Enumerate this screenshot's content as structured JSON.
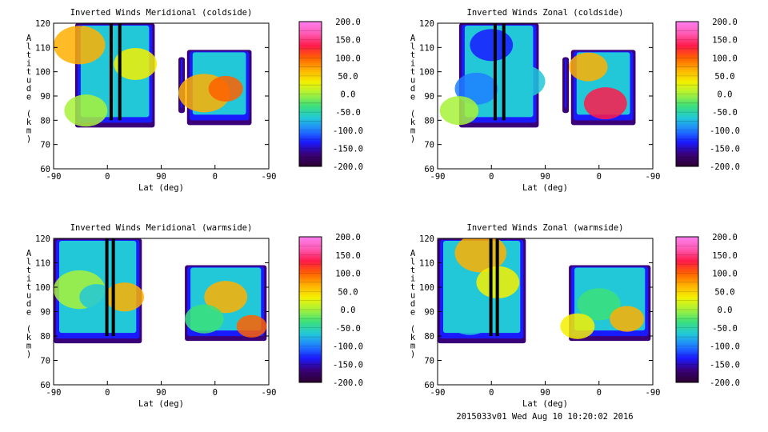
{
  "figure": {
    "footer": "2015033v01 Wed Aug 10 10:20:02 2016",
    "colormap_stops": [
      "#2b0030",
      "#3a007a",
      "#1a1aff",
      "#1f7fff",
      "#22c8d8",
      "#3ce07a",
      "#a8f23a",
      "#f4f000",
      "#ffb000",
      "#ff6000",
      "#ff1a4a",
      "#ff5ab4",
      "#ff7ff0"
    ]
  },
  "chart_data": [
    {
      "type": "heatmap",
      "title": "Inverted Winds Meridional (coldside)",
      "xlabel": "Lat (deg)",
      "ylabel": "Altitude (km)",
      "xticks": [
        "-90",
        "0",
        "90",
        "0",
        "-90"
      ],
      "yticks": [
        60,
        70,
        80,
        90,
        100,
        110,
        120
      ],
      "ylim": [
        60,
        120
      ],
      "colorbar": {
        "ticks": [
          "200.0",
          "150.0",
          "100.0",
          "50.0",
          "0.0",
          "-50.0",
          "-100.0",
          "-150.0",
          "-200.0"
        ],
        "range": [
          -200,
          200
        ]
      }
    },
    {
      "type": "heatmap",
      "title": "Inverted Winds Zonal (coldside)",
      "xlabel": "Lat (deg)",
      "ylabel": "Altitude (km)",
      "xticks": [
        "-90",
        "0",
        "90",
        "0",
        "-90"
      ],
      "yticks": [
        60,
        70,
        80,
        90,
        100,
        110,
        120
      ],
      "ylim": [
        60,
        120
      ],
      "colorbar": {
        "ticks": [
          "200.0",
          "150.0",
          "100.0",
          "50.0",
          "0.0",
          "-50.0",
          "-100.0",
          "-150.0",
          "-200.0"
        ],
        "range": [
          -200,
          200
        ]
      }
    },
    {
      "type": "heatmap",
      "title": "Inverted Winds Meridional (warmside)",
      "xlabel": "Lat (deg)",
      "ylabel": "Altitude (km)",
      "xticks": [
        "-90",
        "0",
        "90",
        "0",
        "-90"
      ],
      "yticks": [
        60,
        70,
        80,
        90,
        100,
        110,
        120
      ],
      "ylim": [
        60,
        120
      ],
      "colorbar": {
        "ticks": [
          "200.0",
          "150.0",
          "100.0",
          "50.0",
          "0.0",
          "-50.0",
          "-100.0",
          "-150.0",
          "-200.0"
        ],
        "range": [
          -200,
          200
        ]
      }
    },
    {
      "type": "heatmap",
      "title": "Inverted Winds Zonal (warmside)",
      "xlabel": "Lat (deg)",
      "ylabel": "Altitude (km)",
      "xticks": [
        "-90",
        "0",
        "90",
        "0",
        "-90"
      ],
      "yticks": [
        60,
        70,
        80,
        90,
        100,
        110,
        120
      ],
      "ylim": [
        60,
        120
      ],
      "colorbar": {
        "ticks": [
          "200.0",
          "150.0",
          "100.0",
          "50.0",
          "0.0",
          "-50.0",
          "-100.0",
          "-150.0",
          "-200.0"
        ],
        "range": [
          -200,
          200
        ]
      }
    }
  ]
}
